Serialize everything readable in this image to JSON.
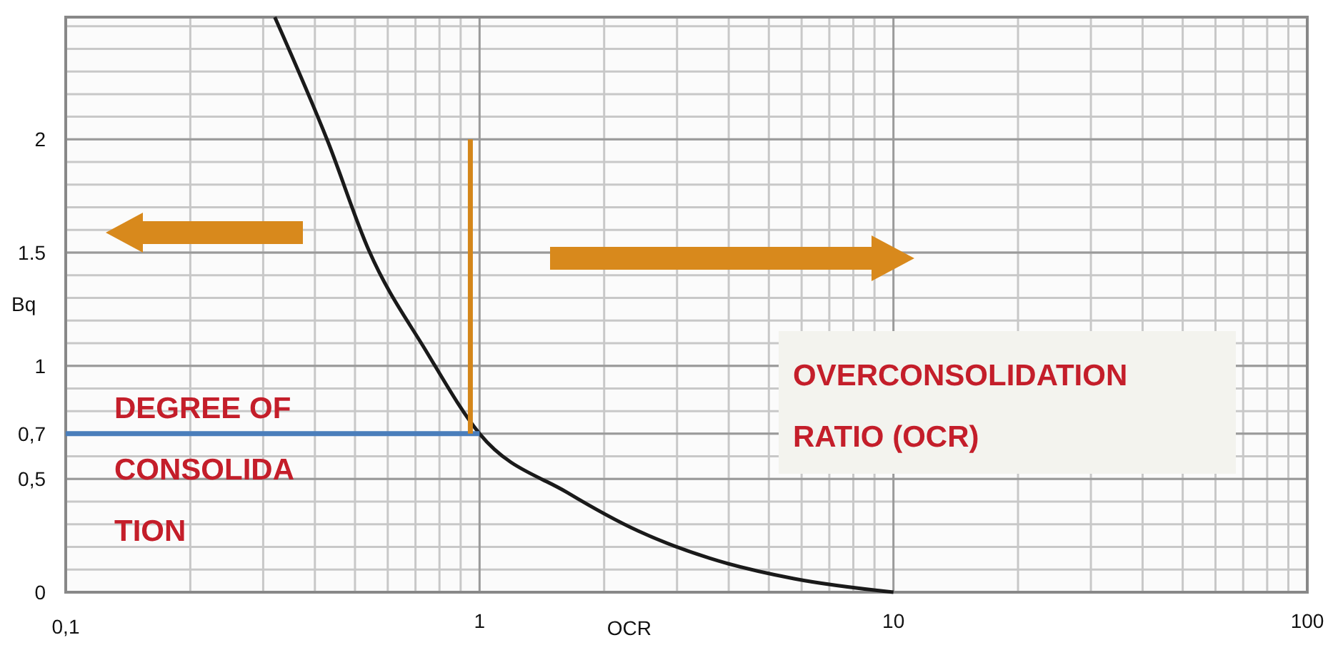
{
  "chart_data": {
    "type": "line",
    "xlabel": "OCR",
    "ylabel": "Bq",
    "log": "x",
    "xlim": [
      0.1,
      100
    ],
    "ylim": [
      0,
      2.54
    ],
    "xticks": [
      {
        "value": 0.1,
        "label": "0,1"
      },
      1,
      10,
      100
    ],
    "yticks": [
      0,
      {
        "value": 0.5,
        "label": "0,5"
      },
      {
        "value": 0.7,
        "label": "0,7"
      },
      1,
      1.5,
      2
    ],
    "grid": true,
    "marker": "none",
    "line_style": "solid",
    "series": [
      {
        "color": "#1a1a1a",
        "x": [
          0.32,
          0.43,
          0.54,
          0.74,
          1,
          1.63,
          2.42,
          3.6,
          5.75,
          10
        ],
        "values": [
          2.54,
          1.99,
          1.51,
          1.07,
          0.7,
          0.44,
          0.27,
          0.15,
          0.06,
          0
        ]
      },
      {
        "color": "#4a7ebb",
        "x": [
          0.1,
          1
        ],
        "values": [
          0.7,
          0.7
        ]
      },
      {
        "color": "#d4861a",
        "x": [
          0.95,
          0.95
        ],
        "values": [
          0.7,
          2
        ]
      }
    ],
    "annotations": [
      "DEGREE OF\nCONSOLIDA\nTION",
      "OVERCONSOLIDATION\nRATIO (OCR)"
    ]
  }
}
